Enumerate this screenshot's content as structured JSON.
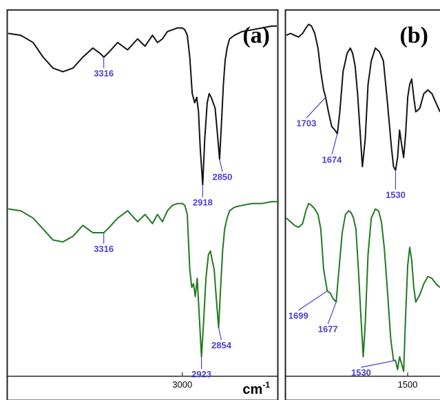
{
  "colors": {
    "top_spectrum": "#111111",
    "bottom_spectrum": "#1e7a1e",
    "peak_labels": "#4b3fd6",
    "frame": "#222222"
  },
  "unit": {
    "base": "cm",
    "exponent": "-1"
  },
  "chart_data": [
    {
      "panel": "(a)",
      "type": "line",
      "xlabel": "cm-1",
      "xlim": [
        3700,
        2620
      ],
      "x_ticks": [
        {
          "value": 3000,
          "label": "3000"
        }
      ],
      "series": [
        {
          "x": [
            3700,
            3650,
            3600,
            3560,
            3520,
            3480,
            3440,
            3400,
            3360,
            3330,
            3316,
            3300,
            3260,
            3220,
            3180,
            3150,
            3120,
            3100,
            3080,
            3060,
            3040,
            3020,
            3000,
            2990,
            2980,
            2970,
            2960,
            2950,
            2942,
            2935,
            2928,
            2918,
            2910,
            2900,
            2892,
            2884,
            2876,
            2868,
            2860,
            2850,
            2842,
            2835,
            2828,
            2820,
            2810,
            2790,
            2760,
            2720,
            2680,
            2640,
            2620
          ],
          "y": [
            0.93,
            0.92,
            0.88,
            0.8,
            0.74,
            0.72,
            0.74,
            0.8,
            0.85,
            0.82,
            0.8,
            0.82,
            0.88,
            0.84,
            0.9,
            0.86,
            0.92,
            0.88,
            0.9,
            0.94,
            0.95,
            0.96,
            0.96,
            0.95,
            0.92,
            0.8,
            0.6,
            0.55,
            0.58,
            0.5,
            0.3,
            0.1,
            0.35,
            0.55,
            0.6,
            0.58,
            0.55,
            0.52,
            0.4,
            0.24,
            0.45,
            0.65,
            0.78,
            0.85,
            0.9,
            0.92,
            0.94,
            0.95,
            0.96,
            0.97,
            0.97
          ]
        },
        {
          "x": [
            3700,
            3650,
            3600,
            3560,
            3520,
            3480,
            3440,
            3400,
            3360,
            3330,
            3316,
            3300,
            3260,
            3220,
            3180,
            3150,
            3120,
            3100,
            3080,
            3060,
            3040,
            3020,
            3000,
            2990,
            2980,
            2970,
            2962,
            2955,
            2948,
            2940,
            2932,
            2923,
            2915,
            2905,
            2895,
            2887,
            2880,
            2872,
            2864,
            2854,
            2846,
            2838,
            2830,
            2820,
            2810,
            2790,
            2760,
            2720,
            2680,
            2640,
            2620
          ],
          "y": [
            0.93,
            0.92,
            0.88,
            0.82,
            0.76,
            0.75,
            0.78,
            0.84,
            0.8,
            0.8,
            0.8,
            0.82,
            0.88,
            0.92,
            0.86,
            0.9,
            0.85,
            0.9,
            0.86,
            0.92,
            0.95,
            0.96,
            0.96,
            0.95,
            0.9,
            0.6,
            0.5,
            0.52,
            0.45,
            0.55,
            0.35,
            0.12,
            0.3,
            0.55,
            0.68,
            0.7,
            0.65,
            0.6,
            0.45,
            0.28,
            0.5,
            0.7,
            0.82,
            0.88,
            0.92,
            0.94,
            0.95,
            0.96,
            0.96,
            0.97,
            0.97
          ]
        }
      ],
      "annotations": [
        {
          "series": 0,
          "x": 3316,
          "label": "3316"
        },
        {
          "series": 0,
          "x": 2918,
          "label": "2918"
        },
        {
          "series": 0,
          "x": 2850,
          "label": "2850"
        },
        {
          "series": 1,
          "x": 3316,
          "label": "3316"
        },
        {
          "series": 1,
          "x": 2923,
          "label": "2923"
        },
        {
          "series": 1,
          "x": 2854,
          "label": "2854"
        }
      ]
    },
    {
      "panel": "(b)",
      "type": "line",
      "xlabel": "",
      "xlim": [
        1800,
        1420
      ],
      "x_ticks": [
        {
          "value": 1500,
          "label": "1500"
        }
      ],
      "series": [
        {
          "x": [
            1800,
            1790,
            1780,
            1770,
            1760,
            1752,
            1745,
            1738,
            1730,
            1722,
            1715,
            1708,
            1703,
            1696,
            1688,
            1680,
            1674,
            1668,
            1660,
            1650,
            1642,
            1636,
            1630,
            1624,
            1618,
            1612,
            1605,
            1598,
            1590,
            1580,
            1570,
            1560,
            1550,
            1540,
            1535,
            1530,
            1525,
            1520,
            1515,
            1510,
            1505,
            1500,
            1495,
            1490,
            1485,
            1480,
            1470,
            1460,
            1450,
            1440,
            1430,
            1420
          ],
          "y": [
            0.92,
            0.93,
            0.92,
            0.91,
            0.93,
            0.96,
            0.98,
            0.97,
            0.93,
            0.85,
            0.72,
            0.62,
            0.58,
            0.5,
            0.42,
            0.4,
            0.38,
            0.5,
            0.72,
            0.82,
            0.85,
            0.82,
            0.75,
            0.6,
            0.4,
            0.2,
            0.35,
            0.65,
            0.78,
            0.85,
            0.83,
            0.78,
            0.55,
            0.3,
            0.2,
            0.18,
            0.25,
            0.4,
            0.32,
            0.25,
            0.38,
            0.58,
            0.65,
            0.68,
            0.58,
            0.5,
            0.52,
            0.6,
            0.62,
            0.6,
            0.55,
            0.5
          ]
        },
        {
          "x": [
            1800,
            1790,
            1780,
            1770,
            1760,
            1752,
            1745,
            1738,
            1730,
            1722,
            1715,
            1708,
            1699,
            1692,
            1685,
            1677,
            1670,
            1662,
            1654,
            1646,
            1640,
            1634,
            1628,
            1622,
            1616,
            1610,
            1605,
            1598,
            1590,
            1580,
            1572,
            1565,
            1558,
            1550,
            1542,
            1535,
            1530,
            1525,
            1520,
            1515,
            1510,
            1505,
            1500,
            1495,
            1490,
            1485,
            1480,
            1470,
            1460,
            1450,
            1440,
            1430,
            1420
          ],
          "y": [
            0.88,
            0.86,
            0.84,
            0.83,
            0.85,
            0.92,
            0.96,
            0.95,
            0.93,
            0.9,
            0.82,
            0.6,
            0.48,
            0.47,
            0.44,
            0.42,
            0.6,
            0.8,
            0.9,
            0.92,
            0.91,
            0.88,
            0.82,
            0.6,
            0.35,
            0.12,
            0.3,
            0.68,
            0.88,
            0.93,
            0.92,
            0.86,
            0.72,
            0.48,
            0.22,
            0.1,
            0.1,
            0.05,
            0.12,
            0.08,
            0.04,
            0.35,
            0.62,
            0.72,
            0.65,
            0.5,
            0.42,
            0.46,
            0.52,
            0.56,
            0.55,
            0.52,
            0.5
          ]
        }
      ],
      "annotations": [
        {
          "series": 0,
          "x": 1703,
          "label": "1703"
        },
        {
          "series": 0,
          "x": 1674,
          "label": "1674"
        },
        {
          "series": 0,
          "x": 1530,
          "label": "1530"
        },
        {
          "series": 1,
          "x": 1699,
          "label": "1699"
        },
        {
          "series": 1,
          "x": 1677,
          "label": "1677"
        },
        {
          "series": 1,
          "x": 1530,
          "label": "1530"
        }
      ]
    }
  ]
}
